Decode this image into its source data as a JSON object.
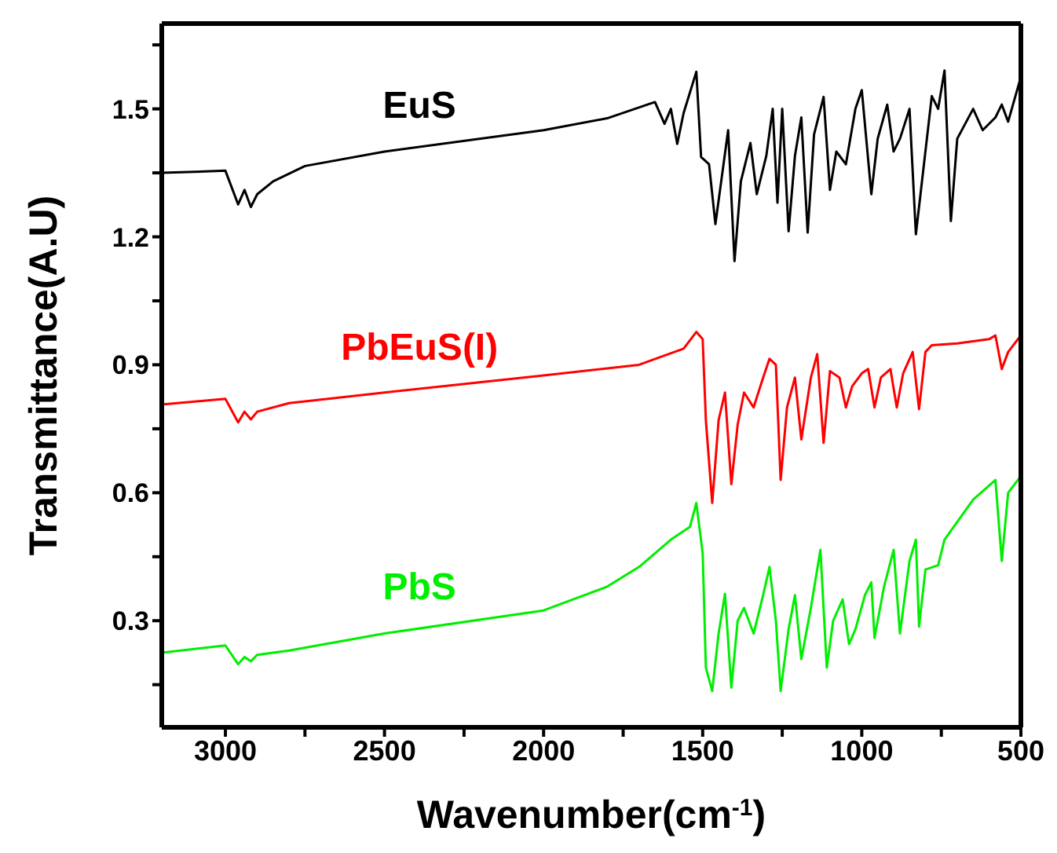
{
  "chart_data": {
    "type": "line",
    "xlabel": "Wavenumber(cm$^{-1}$)",
    "ylabel": "Transmittance(A.U)",
    "xlim": [
      3200,
      500
    ],
    "ylim": [
      0.05,
      1.7
    ],
    "xticks": [
      3000,
      {
        "value": 2750,
        "label": null
      },
      2500,
      {
        "value": 2250,
        "label": null
      },
      2000,
      {
        "value": 1750,
        "label": null
      },
      1500,
      {
        "value": 1250,
        "label": null
      },
      1000,
      {
        "value": 750,
        "label": null
      },
      500
    ],
    "yticks": [
      {
        "value": 0.15,
        "label": null
      },
      0.3,
      {
        "value": 0.45,
        "label": null
      },
      0.6,
      {
        "value": 0.75,
        "label": null
      },
      0.9,
      {
        "value": 1.05,
        "label": null
      },
      1.2,
      {
        "value": 1.35,
        "label": null
      },
      1.5,
      {
        "value": 1.65,
        "label": null
      }
    ],
    "grid": false,
    "legend": false,
    "marker": "none",
    "line_style": "solid",
    "series": [
      {
        "name": "EuS",
        "color": "#000000",
        "x": [
          3200,
          3000,
          2960,
          2940,
          2920,
          2900,
          2850,
          2750,
          2500,
          2000,
          1800,
          1650,
          1620,
          1600,
          1580,
          1560,
          1520,
          1505,
          1480,
          1460,
          1440,
          1420,
          1400,
          1380,
          1350,
          1330,
          1300,
          1280,
          1265,
          1250,
          1230,
          1210,
          1190,
          1170,
          1150,
          1120,
          1100,
          1080,
          1050,
          1020,
          1000,
          970,
          950,
          920,
          900,
          880,
          850,
          830,
          800,
          780,
          760,
          740,
          720,
          700,
          650,
          620,
          580,
          560,
          540,
          500
        ],
        "values": [
          1.35,
          1.355,
          1.276,
          1.31,
          1.27,
          1.3,
          1.33,
          1.366,
          1.4,
          1.45,
          1.478,
          1.516,
          1.465,
          1.5,
          1.418,
          1.49,
          1.587,
          1.387,
          1.37,
          1.23,
          1.34,
          1.45,
          1.143,
          1.33,
          1.42,
          1.3,
          1.39,
          1.5,
          1.28,
          1.5,
          1.213,
          1.39,
          1.48,
          1.21,
          1.44,
          1.528,
          1.31,
          1.4,
          1.37,
          1.5,
          1.544,
          1.3,
          1.43,
          1.51,
          1.4,
          1.43,
          1.5,
          1.206,
          1.4,
          1.53,
          1.5,
          1.59,
          1.237,
          1.43,
          1.5,
          1.45,
          1.48,
          1.51,
          1.47,
          1.575
        ]
      },
      {
        "name": "PbEuS(I)",
        "color": "#ff0000",
        "x": [
          3200,
          3000,
          2960,
          2940,
          2920,
          2900,
          2800,
          2500,
          2000,
          1700,
          1560,
          1520,
          1500,
          1490,
          1470,
          1450,
          1430,
          1410,
          1390,
          1370,
          1340,
          1310,
          1290,
          1270,
          1255,
          1235,
          1210,
          1190,
          1160,
          1140,
          1120,
          1100,
          1070,
          1050,
          1030,
          1000,
          980,
          960,
          940,
          910,
          890,
          870,
          840,
          820,
          800,
          780,
          700,
          600,
          580,
          560,
          540,
          500
        ],
        "values": [
          0.807,
          0.82,
          0.765,
          0.79,
          0.772,
          0.79,
          0.81,
          0.835,
          0.875,
          0.9,
          0.938,
          0.977,
          0.96,
          0.77,
          0.576,
          0.77,
          0.835,
          0.62,
          0.76,
          0.835,
          0.8,
          0.87,
          0.914,
          0.9,
          0.63,
          0.8,
          0.87,
          0.725,
          0.87,
          0.925,
          0.717,
          0.885,
          0.87,
          0.8,
          0.85,
          0.88,
          0.89,
          0.8,
          0.87,
          0.89,
          0.8,
          0.88,
          0.93,
          0.796,
          0.93,
          0.946,
          0.95,
          0.96,
          0.969,
          0.89,
          0.93,
          0.969
        ]
      },
      {
        "name": "PbS",
        "color": "#00ee00",
        "x": [
          3200,
          3000,
          2960,
          2940,
          2920,
          2900,
          2800,
          2500,
          2000,
          1800,
          1700,
          1600,
          1540,
          1520,
          1500,
          1490,
          1470,
          1450,
          1430,
          1410,
          1390,
          1370,
          1340,
          1310,
          1290,
          1270,
          1255,
          1230,
          1210,
          1190,
          1160,
          1130,
          1110,
          1090,
          1060,
          1040,
          1020,
          990,
          970,
          960,
          930,
          900,
          880,
          850,
          830,
          820,
          800,
          760,
          740,
          650,
          580,
          560,
          540,
          500
        ],
        "values": [
          0.225,
          0.242,
          0.198,
          0.215,
          0.205,
          0.22,
          0.23,
          0.27,
          0.324,
          0.38,
          0.426,
          0.49,
          0.52,
          0.576,
          0.458,
          0.19,
          0.135,
          0.27,
          0.363,
          0.143,
          0.3,
          0.33,
          0.27,
          0.36,
          0.426,
          0.3,
          0.135,
          0.28,
          0.36,
          0.21,
          0.33,
          0.466,
          0.19,
          0.3,
          0.35,
          0.245,
          0.28,
          0.36,
          0.39,
          0.26,
          0.38,
          0.466,
          0.27,
          0.44,
          0.49,
          0.286,
          0.42,
          0.43,
          0.49,
          0.584,
          0.63,
          0.44,
          0.6,
          0.639
        ]
      }
    ]
  }
}
